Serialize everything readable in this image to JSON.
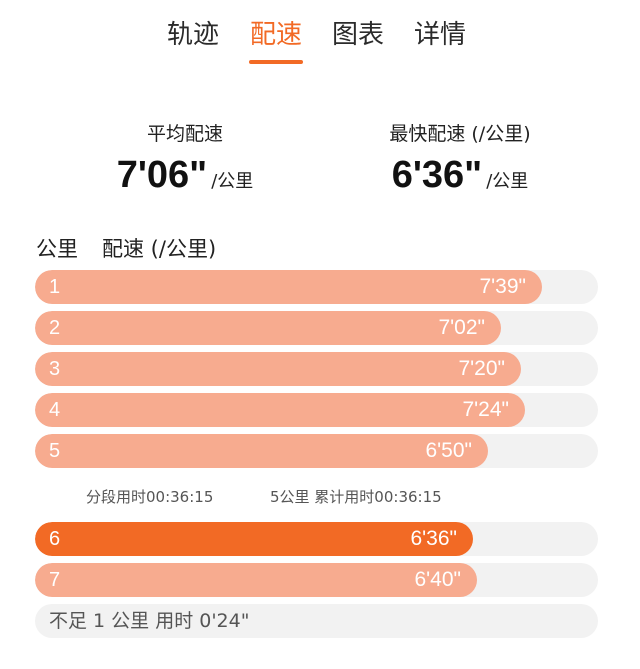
{
  "tabs": [
    {
      "label": "轨迹",
      "active": false
    },
    {
      "label": "配速",
      "active": true
    },
    {
      "label": "图表",
      "active": false
    },
    {
      "label": "详情",
      "active": false
    }
  ],
  "summary": {
    "average": {
      "label": "平均配速",
      "value": "7'06\"",
      "unit": "/公里"
    },
    "fastest": {
      "label": "最快配速 (/公里)",
      "value": "6'36\"",
      "unit": "/公里"
    }
  },
  "list_header": {
    "km_label": "公里",
    "pace_label": "配速 (/公里)"
  },
  "colors": {
    "accent": "#f26a25",
    "bar": "#f7ab8f",
    "track": "#f2f2f2"
  },
  "rows": [
    {
      "km": "1",
      "pace": "7'39\"",
      "seconds": 459,
      "highlight": false
    },
    {
      "km": "2",
      "pace": "7'02\"",
      "seconds": 422,
      "highlight": false
    },
    {
      "km": "3",
      "pace": "7'20\"",
      "seconds": 440,
      "highlight": false
    },
    {
      "km": "4",
      "pace": "7'24\"",
      "seconds": 444,
      "highlight": false
    },
    {
      "km": "5",
      "pace": "6'50\"",
      "seconds": 410,
      "highlight": false
    },
    {
      "km": "6",
      "pace": "6'36\"",
      "seconds": 396,
      "highlight": true
    },
    {
      "km": "7",
      "pace": "6'40\"",
      "seconds": 400,
      "highlight": false
    }
  ],
  "split_note": {
    "segment_time": "分段用时00:36:15",
    "cumulative": "5公里 累计用时00:36:15"
  },
  "remainder": "不足 1 公里 用时 0'24\""
}
